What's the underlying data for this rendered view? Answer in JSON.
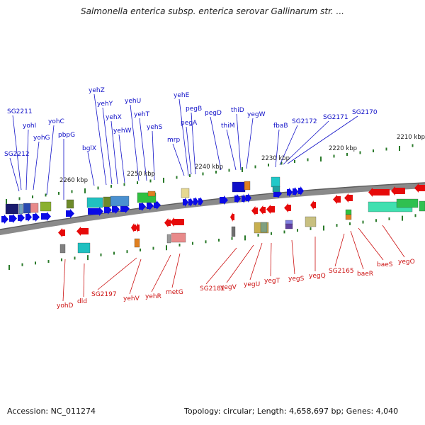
{
  "title": "Salmonella enterica subsp. enterica serovar Gallinarum str. ...",
  "footer": {
    "accession": "Accession: NC_011274",
    "summary": "Topology: circular; Length: 4,658,697 bp; Genes: 4,040"
  },
  "colors": {
    "forward_label": "#1010c8",
    "reverse_label": "#cc1010",
    "forward_arrow": "#0a0ae6",
    "reverse_arrow": "#e60a0a",
    "backbone": "#8a8a8a",
    "tick": "#2a7a2a"
  },
  "scale_labels": [
    "2260 kbp",
    "2250 kbp",
    "2240 kbp",
    "2230 kbp",
    "2220 kbp",
    "2210 kbp"
  ],
  "forward_genes": [
    "SG2212",
    "SG2211",
    "yohI",
    "yohG",
    "yohC",
    "pbpG",
    "bglX",
    "yehZ",
    "yehY",
    "yehX",
    "yehW",
    "yehU",
    "yehT",
    "yehS",
    "mrp",
    "yehE",
    "pegA",
    "pegB",
    "pegD",
    "thiM",
    "thiD",
    "yegW",
    "fbaB",
    "SG2172",
    "SG2171",
    "SG2170"
  ],
  "reverse_genes": [
    "yohD",
    "dld",
    "SG2197",
    "yehV",
    "yehR",
    "metG",
    "SG2181",
    "yegV",
    "yegU",
    "yegT",
    "yegS",
    "yegQ",
    "SG2165",
    "baeR",
    "baeS",
    "yegO"
  ]
}
